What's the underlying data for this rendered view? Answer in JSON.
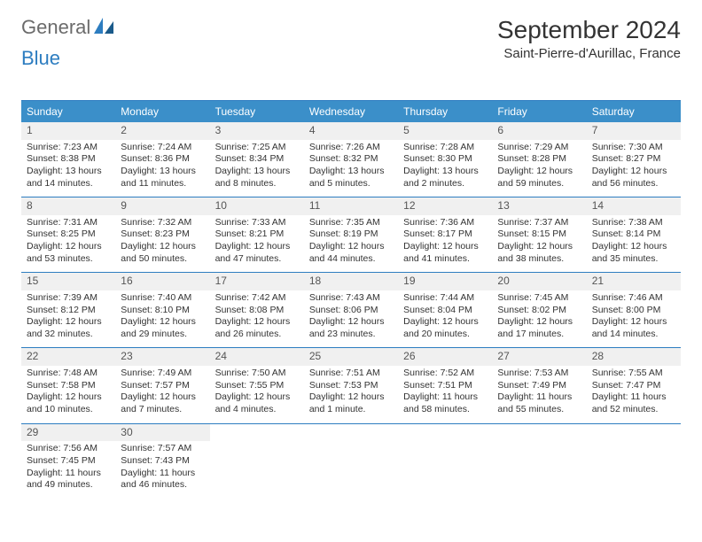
{
  "brand": {
    "part1": "General",
    "part2": "Blue"
  },
  "title": "September 2024",
  "location": "Saint-Pierre-d'Aurillac, France",
  "day_headers": [
    "Sunday",
    "Monday",
    "Tuesday",
    "Wednesday",
    "Thursday",
    "Friday",
    "Saturday"
  ],
  "colors": {
    "header_bg": "#3b8fc9",
    "border": "#2d7dc0",
    "text": "#333333",
    "daynum_bg": "#f0f0f0",
    "logo_gray": "#6b6b6b",
    "logo_blue": "#2d7dc0"
  },
  "days": [
    {
      "n": "1",
      "sr": "7:23 AM",
      "ss": "8:38 PM",
      "dl": "13 hours and 14 minutes."
    },
    {
      "n": "2",
      "sr": "7:24 AM",
      "ss": "8:36 PM",
      "dl": "13 hours and 11 minutes."
    },
    {
      "n": "3",
      "sr": "7:25 AM",
      "ss": "8:34 PM",
      "dl": "13 hours and 8 minutes."
    },
    {
      "n": "4",
      "sr": "7:26 AM",
      "ss": "8:32 PM",
      "dl": "13 hours and 5 minutes."
    },
    {
      "n": "5",
      "sr": "7:28 AM",
      "ss": "8:30 PM",
      "dl": "13 hours and 2 minutes."
    },
    {
      "n": "6",
      "sr": "7:29 AM",
      "ss": "8:28 PM",
      "dl": "12 hours and 59 minutes."
    },
    {
      "n": "7",
      "sr": "7:30 AM",
      "ss": "8:27 PM",
      "dl": "12 hours and 56 minutes."
    },
    {
      "n": "8",
      "sr": "7:31 AM",
      "ss": "8:25 PM",
      "dl": "12 hours and 53 minutes."
    },
    {
      "n": "9",
      "sr": "7:32 AM",
      "ss": "8:23 PM",
      "dl": "12 hours and 50 minutes."
    },
    {
      "n": "10",
      "sr": "7:33 AM",
      "ss": "8:21 PM",
      "dl": "12 hours and 47 minutes."
    },
    {
      "n": "11",
      "sr": "7:35 AM",
      "ss": "8:19 PM",
      "dl": "12 hours and 44 minutes."
    },
    {
      "n": "12",
      "sr": "7:36 AM",
      "ss": "8:17 PM",
      "dl": "12 hours and 41 minutes."
    },
    {
      "n": "13",
      "sr": "7:37 AM",
      "ss": "8:15 PM",
      "dl": "12 hours and 38 minutes."
    },
    {
      "n": "14",
      "sr": "7:38 AM",
      "ss": "8:14 PM",
      "dl": "12 hours and 35 minutes."
    },
    {
      "n": "15",
      "sr": "7:39 AM",
      "ss": "8:12 PM",
      "dl": "12 hours and 32 minutes."
    },
    {
      "n": "16",
      "sr": "7:40 AM",
      "ss": "8:10 PM",
      "dl": "12 hours and 29 minutes."
    },
    {
      "n": "17",
      "sr": "7:42 AM",
      "ss": "8:08 PM",
      "dl": "12 hours and 26 minutes."
    },
    {
      "n": "18",
      "sr": "7:43 AM",
      "ss": "8:06 PM",
      "dl": "12 hours and 23 minutes."
    },
    {
      "n": "19",
      "sr": "7:44 AM",
      "ss": "8:04 PM",
      "dl": "12 hours and 20 minutes."
    },
    {
      "n": "20",
      "sr": "7:45 AM",
      "ss": "8:02 PM",
      "dl": "12 hours and 17 minutes."
    },
    {
      "n": "21",
      "sr": "7:46 AM",
      "ss": "8:00 PM",
      "dl": "12 hours and 14 minutes."
    },
    {
      "n": "22",
      "sr": "7:48 AM",
      "ss": "7:58 PM",
      "dl": "12 hours and 10 minutes."
    },
    {
      "n": "23",
      "sr": "7:49 AM",
      "ss": "7:57 PM",
      "dl": "12 hours and 7 minutes."
    },
    {
      "n": "24",
      "sr": "7:50 AM",
      "ss": "7:55 PM",
      "dl": "12 hours and 4 minutes."
    },
    {
      "n": "25",
      "sr": "7:51 AM",
      "ss": "7:53 PM",
      "dl": "12 hours and 1 minute."
    },
    {
      "n": "26",
      "sr": "7:52 AM",
      "ss": "7:51 PM",
      "dl": "11 hours and 58 minutes."
    },
    {
      "n": "27",
      "sr": "7:53 AM",
      "ss": "7:49 PM",
      "dl": "11 hours and 55 minutes."
    },
    {
      "n": "28",
      "sr": "7:55 AM",
      "ss": "7:47 PM",
      "dl": "11 hours and 52 minutes."
    },
    {
      "n": "29",
      "sr": "7:56 AM",
      "ss": "7:45 PM",
      "dl": "11 hours and 49 minutes."
    },
    {
      "n": "30",
      "sr": "7:57 AM",
      "ss": "7:43 PM",
      "dl": "11 hours and 46 minutes."
    }
  ],
  "labels": {
    "sunrise": "Sunrise: ",
    "sunset": "Sunset: ",
    "daylight": "Daylight: "
  }
}
